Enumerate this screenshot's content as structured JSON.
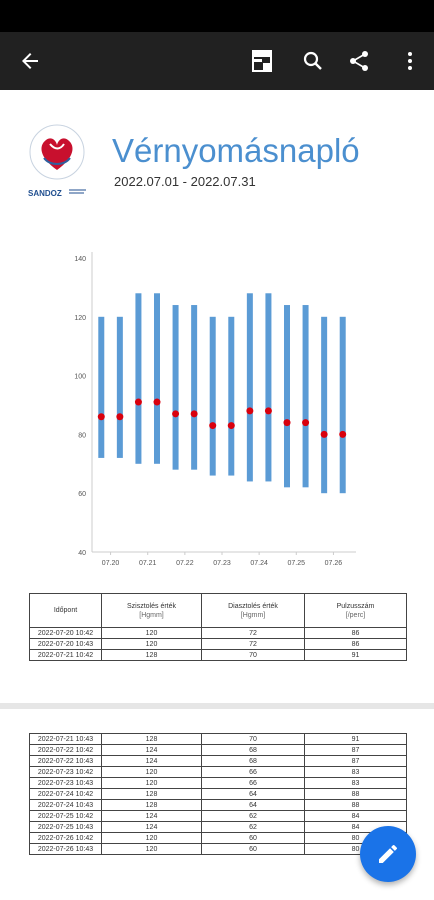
{
  "toolbar": {
    "icons": [
      "back-arrow-icon",
      "document-view-icon",
      "search-icon",
      "share-icon",
      "more-vert-icon"
    ]
  },
  "report": {
    "title": "Vérnyomásnapló",
    "date_range": "2022.07.01 - 2022.07.31",
    "brand": "SANDOZ"
  },
  "colors": {
    "accent": "#4b8fcf",
    "bar": "#5b9bd5",
    "dot": "#d9000d",
    "fab": "#1a73e8"
  },
  "chart_data": {
    "type": "bar",
    "description_free": true,
    "categories": [
      "07.20",
      "07.20",
      "07.21",
      "07.21",
      "07.22",
      "07.22",
      "07.23",
      "07.23",
      "07.24",
      "07.24",
      "07.25",
      "07.25",
      "07.26",
      "07.26"
    ],
    "x_tick_labels": [
      "07.20",
      "07.21",
      "07.22",
      "07.23",
      "07.24",
      "07.25",
      "07.26"
    ],
    "series": [
      {
        "values_low": [
          72,
          72,
          70,
          70,
          68,
          68,
          66,
          66,
          64,
          64,
          62,
          62,
          60,
          60
        ],
        "values_high": [
          120,
          120,
          128,
          128,
          124,
          124,
          120,
          120,
          128,
          128,
          124,
          124,
          120,
          120
        ]
      },
      {
        "values": [
          86,
          86,
          91,
          91,
          87,
          87,
          83,
          83,
          88,
          88,
          84,
          84,
          80,
          80
        ]
      }
    ],
    "y_ticks": [
      "140",
      "120",
      "100",
      "80",
      "60",
      "40"
    ],
    "ylim": [
      40,
      140
    ],
    "grid": false
  },
  "table1": {
    "headers": [
      {
        "label": "Időpont",
        "unit": ""
      },
      {
        "label": "Szisztolés érték",
        "unit": "[Hgmm]"
      },
      {
        "label": "Diasztolés érték",
        "unit": "[Hgmm]"
      },
      {
        "label": "Pulzusszám",
        "unit": "[/perc]"
      }
    ],
    "rows": [
      [
        "2022-07-20 10:42",
        "120",
        "72",
        "86"
      ],
      [
        "2022-07-20 10:43",
        "120",
        "72",
        "86"
      ],
      [
        "2022-07-21 10:42",
        "128",
        "70",
        "91"
      ]
    ]
  },
  "table2": {
    "rows": [
      [
        "2022-07-21 10:43",
        "128",
        "70",
        "91"
      ],
      [
        "2022-07-22 10:42",
        "124",
        "68",
        "87"
      ],
      [
        "2022-07-22 10:43",
        "124",
        "68",
        "87"
      ],
      [
        "2022-07-23 10:42",
        "120",
        "66",
        "83"
      ],
      [
        "2022-07-23 10:43",
        "120",
        "66",
        "83"
      ],
      [
        "2022-07-24 10:42",
        "128",
        "64",
        "88"
      ],
      [
        "2022-07-24 10:43",
        "128",
        "64",
        "88"
      ],
      [
        "2022-07-25 10:42",
        "124",
        "62",
        "84"
      ],
      [
        "2022-07-25 10:43",
        "124",
        "62",
        "84"
      ],
      [
        "2022-07-26 10:42",
        "120",
        "60",
        "80"
      ],
      [
        "2022-07-26 10:43",
        "120",
        "60",
        "80"
      ]
    ]
  }
}
